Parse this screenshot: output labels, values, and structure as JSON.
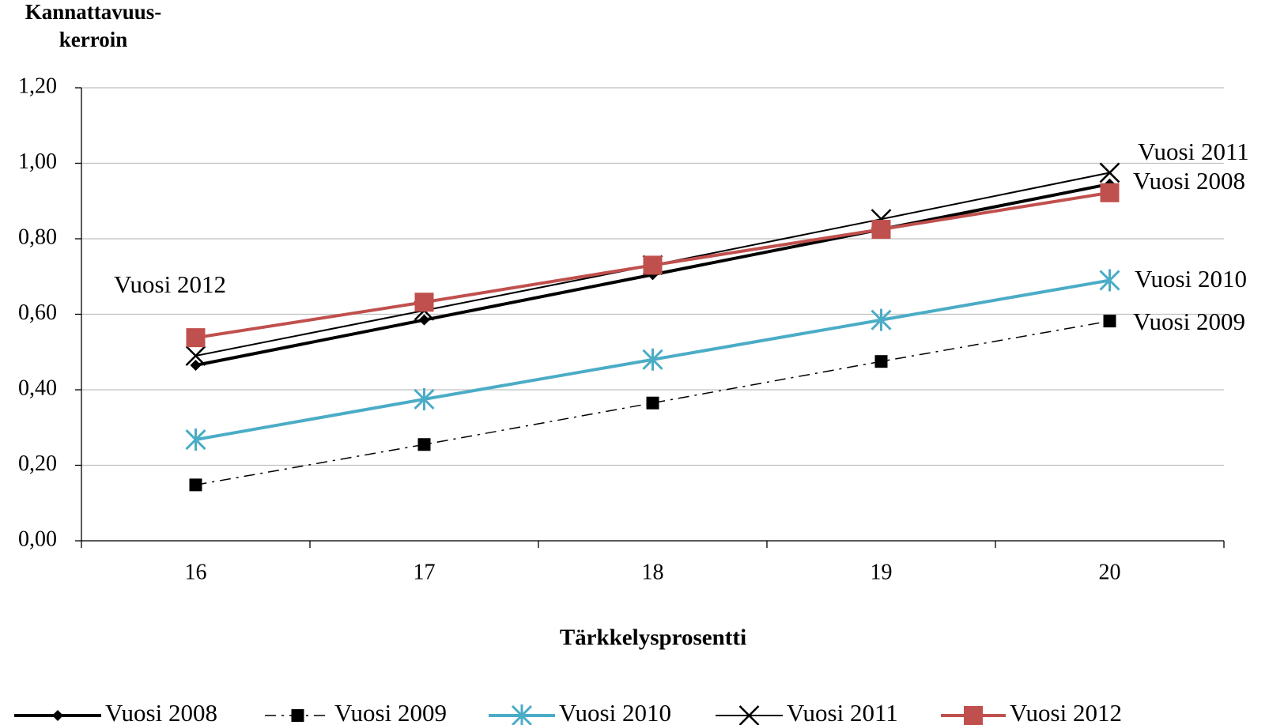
{
  "chart_data": {
    "type": "line",
    "ylabel": [
      "Kannattavuus-",
      "kerroin"
    ],
    "xlabel": "Tärkkelysprosentti",
    "categories": [
      "16",
      "17",
      "18",
      "19",
      "20"
    ],
    "ylim": [
      0,
      1.2
    ],
    "yticks": [
      {
        "value": 0,
        "label": "0,00"
      },
      {
        "value": 0.2,
        "label": "0,20"
      },
      {
        "value": 0.4,
        "label": "0,40"
      },
      {
        "value": 0.6,
        "label": "0,60"
      },
      {
        "value": 0.8,
        "label": "0,80"
      },
      {
        "value": 1.0,
        "label": "1,00"
      },
      {
        "value": 1.2,
        "label": "1,20"
      }
    ],
    "grid": true,
    "legend": "bottom",
    "series": [
      {
        "name": "Vuosi 2008",
        "color": "#000000",
        "marker": "diamond",
        "dash": "solid",
        "width": 4,
        "values": [
          0.465,
          0.585,
          0.705,
          0.825,
          0.945
        ]
      },
      {
        "name": "Vuosi 2009",
        "color": "#000000",
        "marker": "square",
        "dash": "dashdot",
        "width": 1.5,
        "values": [
          0.148,
          0.255,
          0.365,
          0.475,
          0.582
        ]
      },
      {
        "name": "Vuosi 2010",
        "color": "#4bacc6",
        "marker": "asterisk",
        "dash": "solid",
        "width": 4,
        "values": [
          0.268,
          0.375,
          0.48,
          0.585,
          0.69
        ]
      },
      {
        "name": "Vuosi 2011",
        "color": "#000000",
        "marker": "x",
        "dash": "solid",
        "width": 2,
        "values": [
          0.49,
          0.61,
          0.73,
          0.852,
          0.975
        ]
      },
      {
        "name": "Vuosi 2012",
        "color": "#c0504d",
        "marker": "bigsquare",
        "dash": "solid",
        "width": 4,
        "values": [
          0.538,
          0.632,
          0.73,
          0.825,
          0.922
        ]
      }
    ],
    "annotations": [
      "Vuosi 2011",
      "Vuosi 2008",
      "Vuosi 2010",
      "Vuosi 2009",
      "Vuosi 2012"
    ]
  }
}
